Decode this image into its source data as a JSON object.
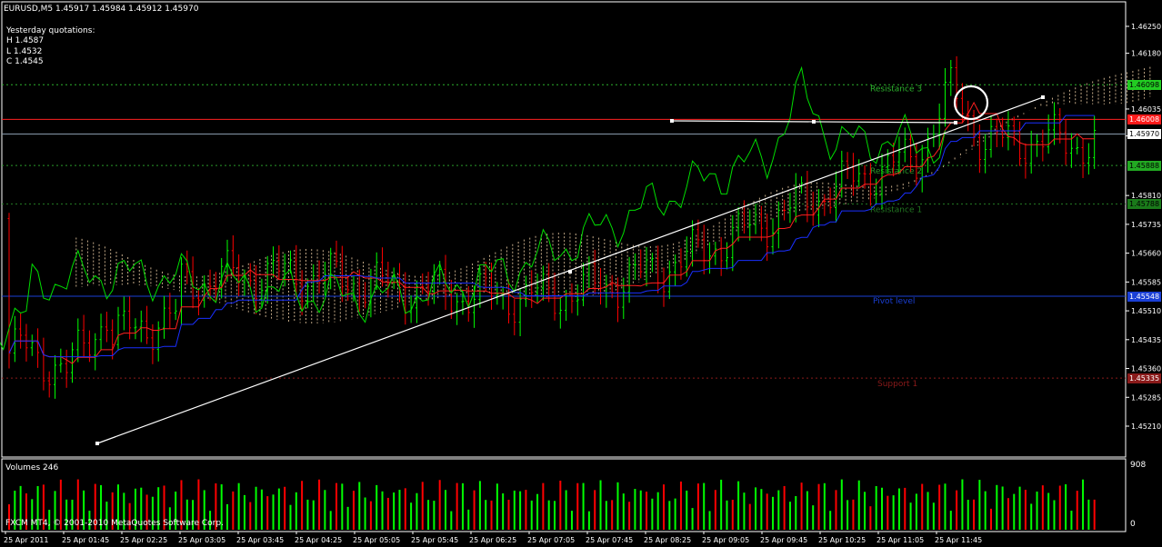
{
  "chart_data": {
    "type": "candlestick",
    "title": "EURUSD,M5  1.45917 1.45984 1.45912 1.45970",
    "yesterday": {
      "heading": "Yesterday quotations:",
      "high": "H 1.4587",
      "low": "L 1.4532",
      "close": "C 1.4545"
    },
    "price_ticks": [
      "1.46250",
      "1.46180",
      "1.46035",
      "1.45965",
      "1.45810",
      "1.45735",
      "1.45660",
      "1.45585",
      "1.45510",
      "1.45435",
      "1.45360",
      "1.45285",
      "1.45210"
    ],
    "price_tick_values": [
      1.4625,
      1.4618,
      1.46035,
      1.45965,
      1.4581,
      1.45735,
      1.4566,
      1.45585,
      1.4551,
      1.45435,
      1.4536,
      1.45285,
      1.4521
    ],
    "ylim": [
      1.45195,
      1.46285
    ],
    "time_labels": [
      "25 Apr 2011",
      "25 Apr 01:45",
      "25 Apr 02:25",
      "25 Apr 03:05",
      "25 Apr 03:45",
      "25 Apr 04:25",
      "25 Apr 05:05",
      "25 Apr 05:45",
      "25 Apr 06:25",
      "25 Apr 07:05",
      "25 Apr 07:45",
      "25 Apr 08:25",
      "25 Apr 09:05",
      "25 Apr 09:45",
      "25 Apr 10:25",
      "25 Apr 11:05",
      "25 Apr 11:45"
    ],
    "levels": [
      {
        "name": "Resistance 3",
        "label": "1.46098",
        "value": 1.46098,
        "color": "#2db32d",
        "bg": "#22cc22",
        "fg": "#000000"
      },
      {
        "name": "Resistance 2",
        "label": "1.45888",
        "value": 1.45888,
        "color": "#2a9a2a",
        "bg": "#22aa22",
        "fg": "#000000"
      },
      {
        "name": "Resistance 1",
        "label": "1.45788",
        "value": 1.45788,
        "color": "#227722",
        "bg": "#1a7a1a",
        "fg": "#000000"
      },
      {
        "name": "Pivot level",
        "label": "1.45548",
        "value": 1.45548,
        "color": "#1a3fd6",
        "bg": "#1a3fd6",
        "fg": "#ffffff"
      },
      {
        "name": "Support 1",
        "label": "1.45335",
        "value": 1.45335,
        "color": "#8a1a1a",
        "bg": "#8a1a1a",
        "fg": "#ffffff"
      }
    ],
    "current_price": {
      "label": "1.45970",
      "value": 1.4597
    },
    "red_line": {
      "label": "1.46008",
      "value": 1.46008
    },
    "volume_panel": {
      "title": "Volumes 246",
      "max_label": "908",
      "min_label": "0"
    },
    "copyright": "FXCM MT4, © 2001-2010 MetaQuotes Software Corp.",
    "colors": {
      "bull": "#00ff00",
      "bear": "#ff0000",
      "tenkan": "#ff2020",
      "kijun": "#1a2fff",
      "chikou": "#00dd00",
      "cloud": "#e6c8a0",
      "grid": "#404040"
    }
  }
}
